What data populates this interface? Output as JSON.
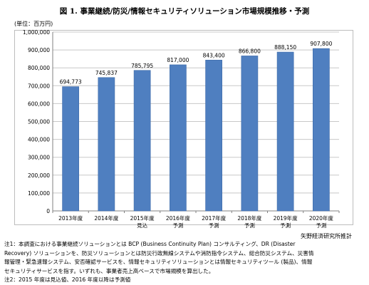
{
  "header": {
    "title": "図 1. 事業継続/防災/情報セキュリティソリューション市場規模推移・予測",
    "unit_label": "(単位：百万円)"
  },
  "footer": {
    "source": "矢野経済研究所推計",
    "notes": [
      "注1：本調査における事業継続ソリューションとは BCP (Business Continuity Plan) コンサルティング、DR (Disaster",
      "Recovery) ソリューションを、防災ソリューションとは防災行政無線システムや消防指令システム、総合防災システム、災害情",
      "報管理・緊急速報システム、安否確認サービスを、情報セキュリティソリューションとは情報セキュリティツール (製品)、情報",
      "セキュリティサービスを指す。いずれも、事業者売上高ベースで市場規模を算出した。",
      "注2：2015 年度は見込値、2016 年度以降は予測値"
    ]
  },
  "colors": {
    "bar": "#4f7fc0",
    "bar_edge": "#3d6aa8",
    "grid": "#c8c8c8",
    "axis": "#808080"
  },
  "chart_data": {
    "type": "bar",
    "categories": [
      [
        "2013年度"
      ],
      [
        "2014年度"
      ],
      [
        "2015年度",
        "見込"
      ],
      [
        "2016年度",
        "予測"
      ],
      [
        "2017年度",
        "予測"
      ],
      [
        "2018年度",
        "予測"
      ],
      [
        "2019年度",
        "予測"
      ],
      [
        "2020年度",
        "予測"
      ]
    ],
    "values": [
      694773,
      745837,
      785795,
      817000,
      843400,
      866800,
      888150,
      907800
    ],
    "value_labels": [
      "694,773",
      "745,837",
      "785,795",
      "817,000",
      "843,400",
      "866,800",
      "888,150",
      "907,800"
    ],
    "ylim": [
      0,
      1000000
    ],
    "yticks": [
      0,
      100000,
      200000,
      300000,
      400000,
      500000,
      600000,
      700000,
      800000,
      900000,
      1000000
    ],
    "ytick_labels": [
      "0",
      "100,000",
      "200,000",
      "300,000",
      "400,000",
      "500,000",
      "600,000",
      "700,000",
      "800,000",
      "900,000",
      "1,000,000"
    ],
    "grid": true,
    "legend": "none"
  }
}
